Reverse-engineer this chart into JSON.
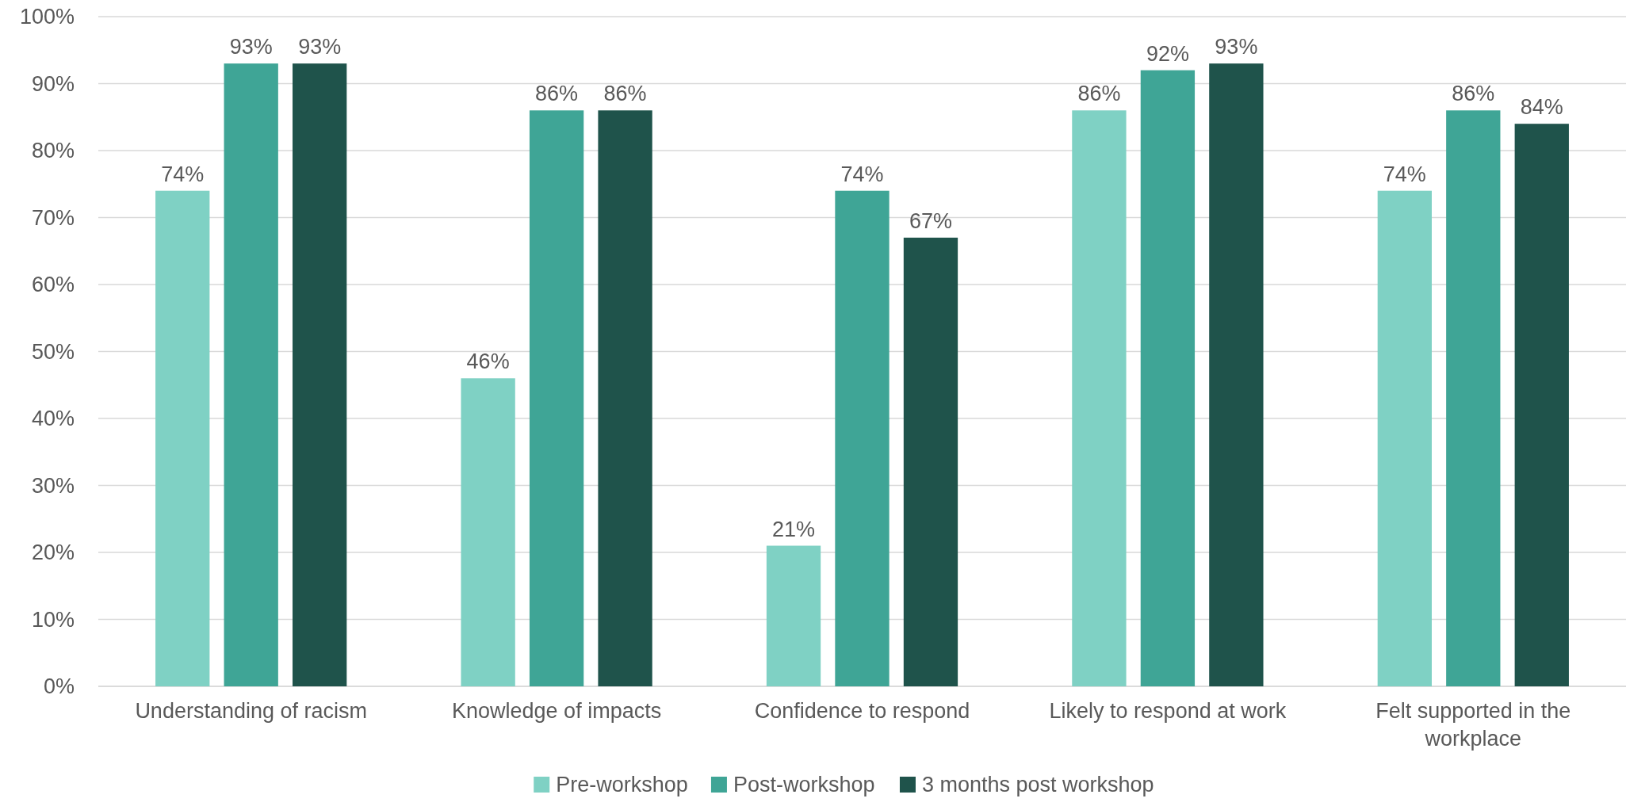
{
  "chart_data": {
    "type": "bar",
    "categories": [
      "Understanding of racism",
      "Knowledge of impacts",
      "Confidence to respond",
      "Likely to respond at work",
      "Felt supported in the workplace"
    ],
    "series": [
      {
        "name": "Pre-workshop",
        "color": "#7fd1c4",
        "values": [
          74,
          46,
          21,
          86,
          74
        ],
        "value_labels": [
          "74%",
          "46%",
          "21%",
          "86%",
          "74%"
        ]
      },
      {
        "name": "Post-workshop",
        "color": "#3fa596",
        "values": [
          93,
          86,
          74,
          92,
          86
        ],
        "value_labels": [
          "93%",
          "86%",
          "74%",
          "92%",
          "86%"
        ]
      },
      {
        "name": "3 months post workshop",
        "color": "#1f534b",
        "values": [
          93,
          86,
          67,
          93,
          84
        ],
        "value_labels": [
          "93%",
          "86%",
          "67%",
          "93%",
          "84%"
        ]
      }
    ],
    "ylim": [
      0,
      100
    ],
    "yticks": [
      {
        "value": 0,
        "label": "0%"
      },
      {
        "value": 10,
        "label": "10%"
      },
      {
        "value": 20,
        "label": "20%"
      },
      {
        "value": 30,
        "label": "30%"
      },
      {
        "value": 40,
        "label": "40%"
      },
      {
        "value": 50,
        "label": "50%"
      },
      {
        "value": 60,
        "label": "60%"
      },
      {
        "value": 70,
        "label": "70%"
      },
      {
        "value": 80,
        "label": "80%"
      },
      {
        "value": 90,
        "label": "90%"
      },
      {
        "value": 100,
        "label": "100%"
      }
    ],
    "grid": "y",
    "legend": "bottom"
  }
}
